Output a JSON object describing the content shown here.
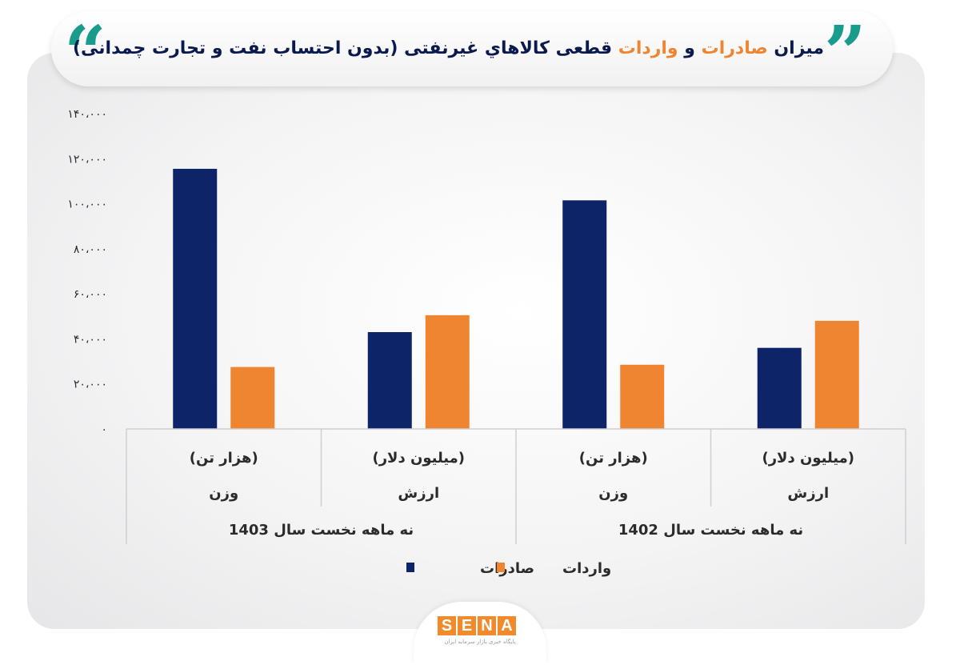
{
  "header": {
    "title_parts": [
      "میزان ",
      "صادرات",
      " و ",
      "واردات",
      " قطعی کالاهاي  غیرنفتی (بدون احتساب نفت و تجارت چمدانی)"
    ],
    "open_quote": "“",
    "close_quote": "”"
  },
  "chart_data": {
    "type": "bar",
    "title": "میزان صادرات و واردات قطعی کالاهاي  غیرنفتی (بدون احتساب نفت و تجارت چمدانی)",
    "ylim": [
      0,
      140000
    ],
    "y_ticks": [
      0,
      20000,
      40000,
      60000,
      80000,
      100000,
      120000,
      140000
    ],
    "y_tick_labels": [
      "۰",
      "۲۰،۰۰۰",
      "۴۰،۰۰۰",
      "۶۰،۰۰۰",
      "۸۰،۰۰۰",
      "۱۰۰،۰۰۰",
      "۱۲۰،۰۰۰",
      "۱۴۰،۰۰۰"
    ],
    "groups": [
      {
        "period": "نه ماهه نخست سال 1403",
        "categories": [
          {
            "unit": "(هزار تن)",
            "measure": "وزن",
            "values": [
              115500,
              27500
            ]
          },
          {
            "unit": "(میلیون دلار)",
            "measure": "ارزش",
            "values": [
              43000,
              50500
            ]
          }
        ]
      },
      {
        "period": "نه ماهه نخست سال 1402",
        "categories": [
          {
            "unit": "(هزار تن)",
            "measure": "وزن",
            "values": [
              101500,
              28500
            ]
          },
          {
            "unit": "(میلیون دلار)",
            "measure": "ارزش",
            "values": [
              36000,
              48000
            ]
          }
        ]
      }
    ],
    "series": [
      {
        "name": "صادرات",
        "color": "#0d2468"
      },
      {
        "name": "واردات",
        "color": "#ef8531"
      }
    ],
    "legend_position": "bottom",
    "grid": false
  },
  "logo": {
    "letters": [
      "S",
      "E",
      "N",
      "A"
    ],
    "subtitle": "پایگاه خبری بازار سرمایه ایران"
  }
}
